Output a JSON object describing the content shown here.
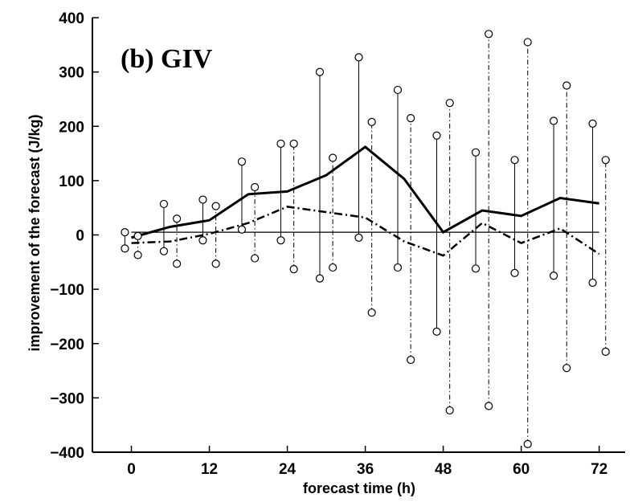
{
  "chart_data": {
    "type": "line",
    "title": "(b) GIV",
    "xlabel": "forecast time (h)",
    "ylabel": "improvement of the forecast (J/kg)",
    "xlim": [
      -6,
      76
    ],
    "ylim": [
      -400,
      400
    ],
    "xticks": [
      "0",
      "12",
      "24",
      "36",
      "48",
      "60",
      "72"
    ],
    "yticks": [
      "400",
      "300",
      "200",
      "100",
      "0",
      "−100",
      "−200",
      "−300",
      "−400"
    ],
    "grid": false,
    "x": [
      0,
      6,
      12,
      18,
      24,
      30,
      36,
      42,
      48,
      54,
      60,
      66,
      72
    ],
    "series": [
      {
        "style": "solid",
        "values": [
          -5,
          15,
          27,
          75,
          80,
          110,
          162,
          103,
          5,
          45,
          35,
          68,
          58
        ],
        "range_low": [
          -25,
          -30,
          -10,
          10,
          -10,
          -80,
          -5,
          -60,
          -178,
          -62,
          -70,
          -75,
          -88
        ],
        "range_high": [
          5,
          57,
          65,
          135,
          168,
          300,
          327,
          267,
          183,
          152,
          138,
          210,
          205
        ]
      },
      {
        "style": "dash-dot",
        "values": [
          -15,
          -12,
          2,
          22,
          52,
          42,
          32,
          -12,
          -38,
          22,
          -15,
          12,
          -35
        ],
        "range_low": [
          -37,
          -53,
          -53,
          -43,
          -63,
          -60,
          -143,
          -230,
          -323,
          -315,
          -385,
          -245,
          -215
        ],
        "range_high": [
          -2,
          30,
          53,
          88,
          168,
          142,
          208,
          215,
          243,
          370,
          355,
          275,
          138
        ]
      }
    ],
    "reference_line": 5
  }
}
